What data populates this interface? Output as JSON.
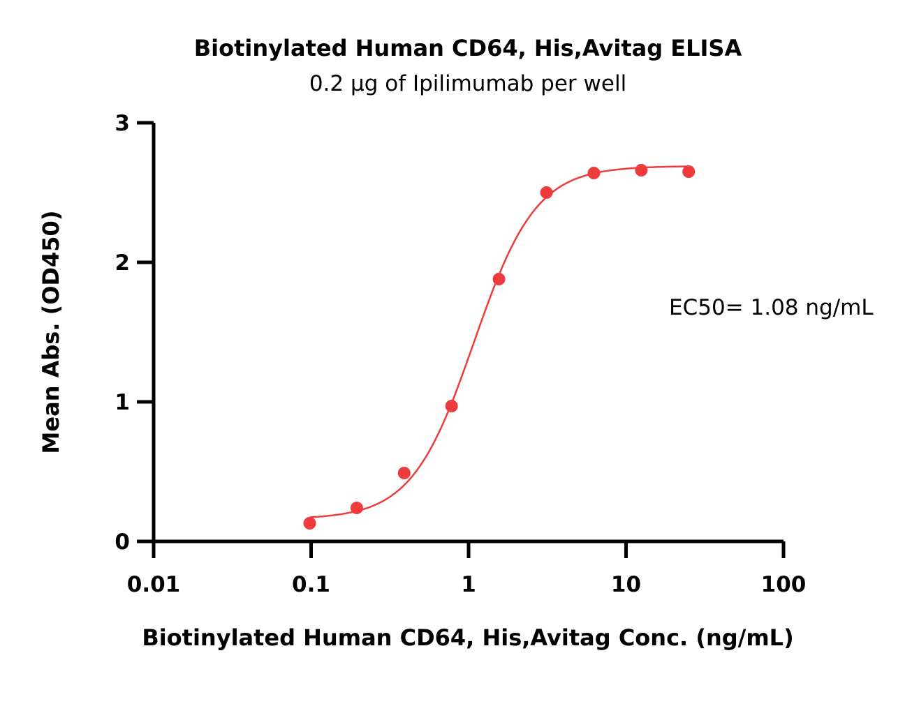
{
  "chart_data": {
    "type": "scatter",
    "title": "Biotinylated Human CD64, His,Avitag ELISA",
    "subtitle": "0.2 µg of Ipilimumab per well",
    "xlabel": "Biotinylated Human CD64, His,Avitag Conc. (ng/mL)",
    "ylabel": "Mean Abs. (OD450)",
    "x_scale": "log",
    "xlim": [
      0.01,
      100
    ],
    "ylim": [
      0,
      3
    ],
    "x_ticks": [
      0.01,
      0.1,
      1,
      10,
      100
    ],
    "x_tick_labels": [
      "0.01",
      "0.1",
      "1",
      "10",
      "100"
    ],
    "y_ticks": [
      0,
      1,
      2,
      3
    ],
    "y_tick_labels": [
      "0",
      "1",
      "2",
      "3"
    ],
    "grid": false,
    "series": [
      {
        "color": "#EF3B3B",
        "x": [
          0.098,
          0.195,
          0.39,
          0.78,
          1.56,
          3.125,
          6.25,
          12.5,
          25
        ],
        "y": [
          0.13,
          0.24,
          0.49,
          0.97,
          1.88,
          2.5,
          2.64,
          2.66,
          2.65
        ],
        "fit": {
          "model": "4PL",
          "bottom": 0.16,
          "top": 2.69,
          "ec50": 1.08,
          "hill": 2.2,
          "x_range": [
            0.098,
            25
          ]
        }
      }
    ],
    "annotations": [
      {
        "text": "EC50= 1.08 ng/mL"
      }
    ]
  }
}
